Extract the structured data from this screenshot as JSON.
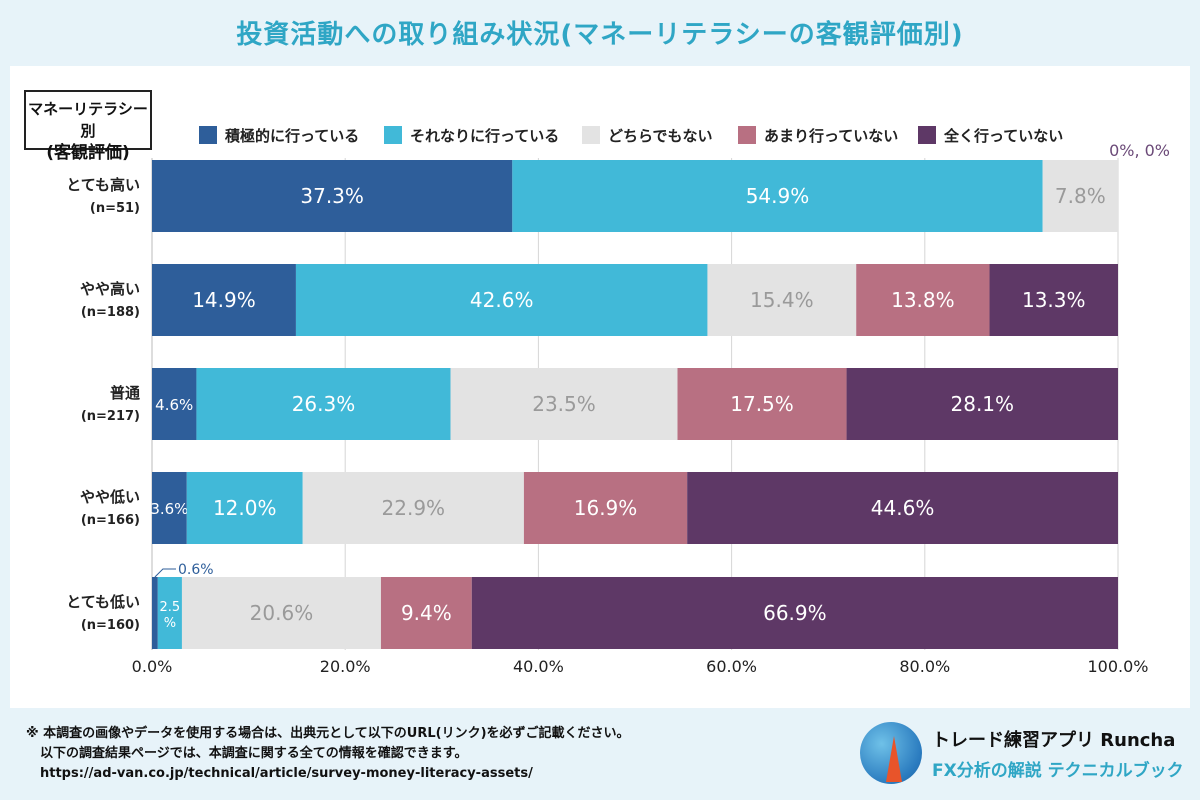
{
  "title": "投資活動への取り組み状況(マネーリテラシーの客観評価別)",
  "segment_label": {
    "line1": "マネーリテラシー別",
    "line2": "(客観評価)"
  },
  "top_note": "0%, 0%",
  "chart_data": {
    "type": "bar",
    "orientation": "horizontal",
    "stacked": true,
    "categories": [
      "とても高い",
      "やや高い",
      "普通",
      "やや低い",
      "とても低い"
    ],
    "category_n": [
      "(n=51)",
      "(n=188)",
      "(n=217)",
      "(n=166)",
      "(n=160)"
    ],
    "series": [
      {
        "name": "積極的に行っている",
        "color": "#2e5e9a",
        "text_color": "#ffffff",
        "values": [
          37.3,
          14.9,
          4.6,
          3.6,
          0.6
        ]
      },
      {
        "name": "それなりに行っている",
        "color": "#41b9d8",
        "text_color": "#ffffff",
        "values": [
          54.9,
          42.6,
          26.3,
          12.0,
          2.5
        ]
      },
      {
        "name": "どちらでもない",
        "color": "#e3e3e3",
        "text_color": "#9a9a9a",
        "values": [
          7.8,
          15.4,
          23.5,
          22.9,
          20.6
        ]
      },
      {
        "name": "あまり行っていない",
        "color": "#b87082",
        "text_color": "#ffffff",
        "values": [
          0,
          13.8,
          17.5,
          16.9,
          9.4
        ]
      },
      {
        "name": "全く行っていない",
        "color": "#5e3866",
        "text_color": "#ffffff",
        "values": [
          0,
          13.3,
          28.1,
          44.6,
          66.9
        ]
      }
    ],
    "data_labels": [
      [
        "37.3%",
        "54.9%",
        "7.8%",
        "",
        ""
      ],
      [
        "14.9%",
        "42.6%",
        "15.4%",
        "13.8%",
        "13.3%"
      ],
      [
        "4.6%",
        "26.3%",
        "23.5%",
        "17.5%",
        "28.1%"
      ],
      [
        "3.6%",
        "12.0%",
        "22.9%",
        "16.9%",
        "44.6%"
      ],
      [
        "0.6%",
        "2.5%",
        "20.6%",
        "9.4%",
        "66.9%"
      ]
    ],
    "xlim": [
      0,
      100
    ],
    "x_ticks": [
      "0.0%",
      "20.0%",
      "40.0%",
      "60.0%",
      "80.0%",
      "100.0%"
    ],
    "grid": true,
    "legend_position": "top"
  },
  "footer": {
    "note1": "※ 本調査の画像やデータを使用する場合は、出典元として以下のURL(リンク)を必ずご記載ください。",
    "note2": "以下の調査結果ページでは、本調査に関する全ての情報を確認できます。",
    "url": "https://ad-van.co.jp/technical/article/survey-money-literacy-assets/"
  },
  "brand": {
    "name": "トレード練習アプリ Runcha",
    "sub": "FX分析の解説 テクニカルブック"
  }
}
